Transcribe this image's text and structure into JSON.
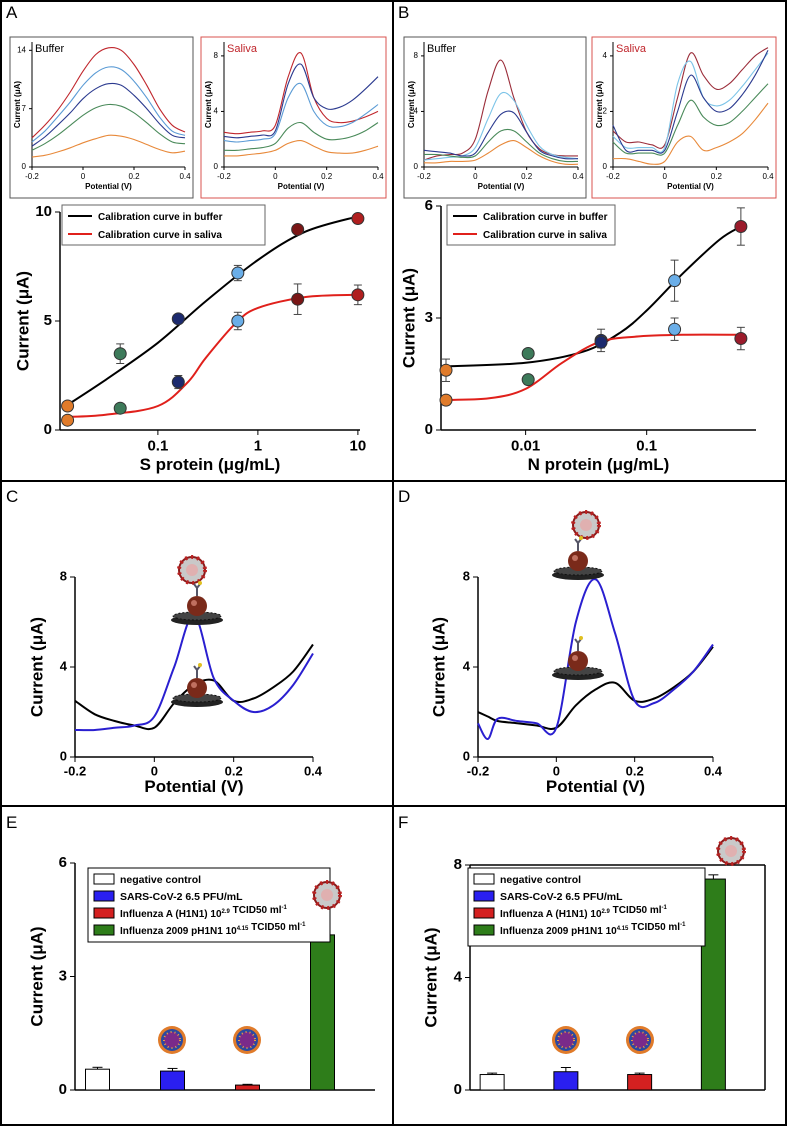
{
  "chart_data": [
    {
      "type": "line",
      "annotation": "Buffer",
      "annotation_color": "#000000",
      "frame_color": "#555555",
      "xlabel": "Potential (V)",
      "ylabel": "Current (μA)",
      "xlim": [
        -0.2,
        0.4
      ],
      "xticks": [
        -0.2,
        0,
        0.2,
        0.4
      ],
      "ylim": [
        0,
        15
      ],
      "yticks": [
        0,
        7,
        14
      ],
      "x": [
        -0.2,
        -0.15,
        -0.1,
        -0.05,
        0,
        0.05,
        0.1,
        0.15,
        0.2,
        0.25,
        0.3,
        0.35,
        0.4
      ],
      "series": [
        {
          "color": "#c0262c",
          "values": [
            3.5,
            5,
            6.8,
            9,
            11.5,
            13.5,
            14.3,
            14,
            12.3,
            9.8,
            7,
            5,
            4.2
          ]
        },
        {
          "color": "#5b9bd5",
          "values": [
            3,
            4.3,
            6,
            7.8,
            9.8,
            11.3,
            12,
            11.7,
            10.3,
            8.3,
            6,
            4.3,
            3.8
          ]
        },
        {
          "color": "#2b3a8f",
          "values": [
            2.5,
            3.6,
            5,
            6.5,
            8.2,
            9.4,
            10,
            9.8,
            8.6,
            7,
            5.2,
            3.8,
            3.5
          ]
        },
        {
          "color": "#4a8a5a",
          "values": [
            2,
            2.8,
            3.8,
            5,
            6.2,
            7.1,
            7.5,
            7.3,
            6.5,
            5.3,
            4,
            3,
            2.8
          ]
        },
        {
          "color": "#e8893a",
          "values": [
            1.2,
            1.4,
            1.8,
            2.3,
            2.9,
            3.4,
            3.8,
            3.7,
            3.3,
            2.7,
            2.1,
            1.7,
            1.9
          ]
        }
      ]
    },
    {
      "type": "line",
      "annotation": "Saliva",
      "annotation_color": "#c0262c",
      "frame_color": "#d9534f",
      "xlabel": "Potential (V)",
      "ylabel": "Current (μA)",
      "xlim": [
        -0.2,
        0.4
      ],
      "xticks": [
        -0.2,
        0,
        0.2,
        0.4
      ],
      "ylim": [
        0,
        9
      ],
      "yticks": [
        0,
        4,
        8
      ],
      "x": [
        -0.2,
        -0.15,
        -0.1,
        -0.05,
        0,
        0.05,
        0.1,
        0.15,
        0.2,
        0.25,
        0.3,
        0.35,
        0.4
      ],
      "series": [
        {
          "color": "#c0262c",
          "values": [
            2.5,
            2.4,
            2.5,
            2.6,
            3,
            6.5,
            8.2,
            5,
            3.5,
            3.2,
            3.3,
            3.6,
            4
          ]
        },
        {
          "color": "#5b9bd5",
          "values": [
            1.9,
            1.8,
            1.9,
            2,
            2.4,
            5,
            6,
            4,
            3,
            2.9,
            3.2,
            3.8,
            4.5
          ]
        },
        {
          "color": "#2b3a8f",
          "values": [
            2.2,
            2.1,
            2.2,
            2.3,
            2.6,
            6,
            7.4,
            5,
            4.2,
            4.3,
            4.8,
            5.6,
            6.5
          ]
        },
        {
          "color": "#4a8a5a",
          "values": [
            1.2,
            1.2,
            1.3,
            1.4,
            1.7,
            2.8,
            3.2,
            2.5,
            2,
            2,
            2.2,
            2.6,
            3.2
          ]
        },
        {
          "color": "#e8893a",
          "values": [
            0.8,
            0.8,
            0.9,
            1,
            1.2,
            1.7,
            1.9,
            1.5,
            1.1,
            1,
            1,
            1.2,
            1.5
          ]
        }
      ]
    },
    {
      "type": "scatter",
      "panel": "A",
      "xlabel": "S protein (μg/mL)",
      "ylabel": "Current (μA)",
      "log_x": true,
      "xlim": [
        0.0105,
        10.5
      ],
      "xticks": [
        0.1,
        1,
        10
      ],
      "ylim": [
        0,
        10
      ],
      "yticks": [
        0,
        5,
        10
      ],
      "legend": "upper left",
      "x": [
        0.0125,
        0.042,
        0.16,
        0.63,
        2.5,
        10
      ],
      "point_colors": [
        "#e07b2a",
        "#3d7a5a",
        "#1c2a6e",
        "#6aaee8",
        "#7a1616",
        "#b01e1e"
      ],
      "series": [
        {
          "name": "Calibration curve in buffer",
          "color": "#000000",
          "values": [
            1.1,
            3.5,
            5.1,
            7.2,
            9.2,
            9.7
          ],
          "errors": [
            0.1,
            0.45,
            0.1,
            0.35,
            0.1,
            0.1
          ]
        },
        {
          "name": "Calibration curve in saliva",
          "color": "#e0201b",
          "values": [
            0.45,
            1.0,
            2.2,
            5.0,
            6.0,
            6.2
          ],
          "errors": [
            0.1,
            0.1,
            0.3,
            0.4,
            0.7,
            0.45
          ]
        }
      ],
      "fit": [
        {
          "x": [
            0.012,
            0.03,
            0.1,
            0.3,
            1,
            3,
            10
          ],
          "values": [
            1.1,
            2.3,
            4.0,
            5.9,
            7.8,
            9.1,
            9.8
          ]
        },
        {
          "x": [
            0.012,
            0.03,
            0.1,
            0.2,
            0.3,
            0.6,
            1,
            3,
            10
          ],
          "values": [
            0.6,
            0.7,
            1.1,
            2.2,
            3.3,
            4.9,
            5.6,
            6.1,
            6.2
          ]
        }
      ]
    },
    {
      "type": "line",
      "annotation": "Buffer",
      "annotation_color": "#000000",
      "frame_color": "#555555",
      "xlabel": "Potential (V)",
      "ylabel": "Current (μA)",
      "xlim": [
        -0.2,
        0.4
      ],
      "xticks": [
        -0.2,
        0,
        0.2,
        0.4
      ],
      "ylim": [
        0,
        9
      ],
      "yticks": [
        0,
        4,
        8
      ],
      "x": [
        -0.2,
        -0.15,
        -0.1,
        -0.05,
        0,
        0.05,
        0.1,
        0.15,
        0.2,
        0.25,
        0.3,
        0.35,
        0.4
      ],
      "series": [
        {
          "color": "#9b2d3a",
          "values": [
            0.5,
            0.8,
            0.9,
            1,
            2,
            5.5,
            7.7,
            5,
            2.5,
            1.3,
            0.9,
            0.8,
            0.8
          ]
        },
        {
          "color": "#7cc4e8",
          "values": [
            0.5,
            0.6,
            0.7,
            0.8,
            1.4,
            3.5,
            5.3,
            4.8,
            3,
            1.5,
            0.9,
            0.7,
            0.6
          ]
        },
        {
          "color": "#2b3a8f",
          "values": [
            1.2,
            1.1,
            1,
            0.8,
            1,
            2.5,
            3.8,
            3.9,
            2.5,
            1.2,
            0.8,
            0.6,
            0.6
          ]
        },
        {
          "color": "#4a8a5a",
          "values": [
            0.9,
            0.9,
            0.8,
            0.7,
            0.8,
            1.8,
            2.6,
            2.6,
            1.8,
            1,
            0.6,
            0.4,
            0.4
          ]
        },
        {
          "color": "#e8893a",
          "values": [
            0.3,
            0.3,
            0.4,
            0.4,
            0.5,
            1,
            1.6,
            1.9,
            1.4,
            0.8,
            0.4,
            0.2,
            0.2
          ]
        }
      ]
    },
    {
      "type": "line",
      "annotation": "Saliva",
      "annotation_color": "#c0262c",
      "frame_color": "#d9534f",
      "xlabel": "Potential (V)",
      "ylabel": "Current (μA)",
      "xlim": [
        -0.2,
        0.4
      ],
      "xticks": [
        -0.2,
        0,
        0.2,
        0.4
      ],
      "ylim": [
        0,
        4.5
      ],
      "yticks": [
        0,
        2,
        4
      ],
      "x": [
        -0.2,
        -0.15,
        -0.1,
        -0.05,
        0,
        0.05,
        0.1,
        0.15,
        0.2,
        0.25,
        0.3,
        0.35,
        0.4
      ],
      "series": [
        {
          "color": "#9b2d3a",
          "values": [
            1.3,
            0.9,
            0.9,
            0.8,
            0.8,
            2.5,
            4.1,
            3.3,
            2.8,
            3,
            3.5,
            4,
            4.3
          ]
        },
        {
          "color": "#7cc4e8",
          "values": [
            1.1,
            0.7,
            0.7,
            0.7,
            0.7,
            3,
            3.8,
            2.5,
            2.2,
            2.4,
            2.9,
            3.5,
            4.1
          ]
        },
        {
          "color": "#2b3a8f",
          "values": [
            1.5,
            0.6,
            0.6,
            0.6,
            0.6,
            2,
            3.3,
            2.5,
            2,
            2.1,
            2.6,
            3.3,
            4.2
          ]
        },
        {
          "color": "#4a8a5a",
          "values": [
            0.9,
            0.5,
            0.5,
            0.5,
            0.5,
            1.5,
            2.4,
            1.8,
            1.5,
            1.6,
            2,
            2.5,
            3
          ]
        },
        {
          "color": "#e8893a",
          "values": [
            0.3,
            0.3,
            0.2,
            0.1,
            0.2,
            0.9,
            1.1,
            0.6,
            0.7,
            0.9,
            1.2,
            1.7,
            2.3
          ]
        }
      ]
    },
    {
      "type": "scatter",
      "panel": "B",
      "xlabel": "N protein (μg/mL)",
      "ylabel": "Current (μA)",
      "log_x": true,
      "xlim": [
        0.002,
        0.8
      ],
      "xticks": [
        0.01,
        0.1
      ],
      "ylim": [
        0,
        6
      ],
      "yticks": [
        0,
        3,
        6
      ],
      "legend": "upper left",
      "x": [
        0.0022,
        0.0105,
        0.042,
        0.17,
        0.6
      ],
      "point_colors": [
        "#e07b2a",
        "#3d7a5a",
        "#1c2a6e",
        "#6aaee8",
        "#9b1b2b"
      ],
      "series": [
        {
          "name": "Calibration curve in buffer",
          "color": "#000000",
          "values": [
            1.6,
            2.05,
            2.4,
            4.0,
            5.45
          ],
          "errors": [
            0.3,
            0.05,
            0.3,
            0.55,
            0.5
          ]
        },
        {
          "name": "Calibration curve in saliva",
          "color": "#e0201b",
          "values": [
            0.8,
            1.35,
            2.35,
            2.7,
            2.45
          ],
          "errors": [
            0.1,
            0.05,
            0.15,
            0.3,
            0.3
          ]
        }
      ],
      "fit": [
        {
          "x": [
            0.002,
            0.01,
            0.03,
            0.06,
            0.1,
            0.2,
            0.4,
            0.6
          ],
          "values": [
            1.7,
            1.8,
            2.1,
            2.6,
            3.2,
            4.2,
            5.1,
            5.45
          ]
        },
        {
          "x": [
            0.002,
            0.005,
            0.01,
            0.02,
            0.04,
            0.08,
            0.2,
            0.6
          ],
          "values": [
            0.8,
            0.85,
            1.1,
            1.8,
            2.35,
            2.5,
            2.55,
            2.55
          ]
        }
      ]
    },
    {
      "type": "line",
      "panel": "C",
      "xlabel": "Potential (V)",
      "ylabel": "Current (μA)",
      "xlim": [
        -0.2,
        0.4
      ],
      "xticks": [
        -0.2,
        0,
        0.2,
        0.4
      ],
      "ylim": [
        0,
        8
      ],
      "yticks": [
        0,
        4,
        8
      ],
      "x": [
        -0.2,
        -0.15,
        -0.1,
        -0.05,
        0,
        0.05,
        0.1,
        0.15,
        0.2,
        0.25,
        0.3,
        0.35,
        0.4
      ],
      "series": [
        {
          "color": "#000000",
          "values": [
            2.5,
            1.9,
            1.6,
            1.4,
            1.3,
            2.4,
            3.2,
            3.4,
            2.5,
            2.6,
            3.1,
            3.8,
            5
          ]
        },
        {
          "color": "#2a1fd0",
          "values": [
            1.2,
            1.2,
            1.3,
            1.4,
            1.8,
            4,
            6.3,
            3.5,
            2.5,
            2,
            2.3,
            3.2,
            4.6
          ]
        }
      ]
    },
    {
      "type": "line",
      "panel": "D",
      "xlabel": "Potential (V)",
      "ylabel": "Current (μA)",
      "xlim": [
        -0.2,
        0.4
      ],
      "xticks": [
        -0.2,
        0,
        0.2,
        0.4
      ],
      "ylim": [
        0,
        8
      ],
      "yticks": [
        0,
        4,
        8
      ],
      "x": [
        -0.2,
        -0.175,
        -0.15,
        -0.1,
        -0.05,
        0,
        0.05,
        0.1,
        0.15,
        0.2,
        0.25,
        0.3,
        0.35,
        0.4
      ],
      "series": [
        {
          "color": "#000000",
          "values": [
            2,
            1.8,
            1.6,
            1.5,
            1.4,
            1.3,
            2.3,
            3,
            3.3,
            2.5,
            2.6,
            3.1,
            3.8,
            4.9
          ]
        },
        {
          "color": "#2a1fd0",
          "values": [
            1.5,
            0.8,
            1.7,
            1.6,
            1.5,
            1.3,
            6,
            7.9,
            5.5,
            2.5,
            2.4,
            3,
            3.8,
            5
          ]
        }
      ]
    },
    {
      "type": "bar",
      "panel": "E",
      "ylabel": "Current (μA)",
      "ylim": [
        0,
        6
      ],
      "yticks": [
        0,
        3,
        6
      ],
      "legend": "upper left",
      "series": [
        {
          "name": "negative control",
          "color": "#ffffff",
          "values": [
            0.55
          ],
          "errors": [
            0.05
          ]
        },
        {
          "name": "SARS-CoV-2 6.5 PFU/mL",
          "color": "#2a1ff0",
          "values": [
            0.5
          ],
          "errors": [
            0.07
          ]
        },
        {
          "name": [
            "Influenza A (H1N1) 10",
            {
              "sup": "2.9"
            },
            " TCID50 ml",
            {
              "sup": "-1"
            }
          ],
          "color": "#d42020",
          "values": [
            0.13
          ],
          "errors": [
            0.02
          ]
        },
        {
          "name": [
            "Influenza 2009 pH1N1  10",
            {
              "sup": "4.15"
            },
            " TCID50 ml",
            {
              "sup": "-1"
            }
          ],
          "color": "#2e7d1a",
          "values": [
            4.1
          ],
          "errors": [
            0.45
          ]
        }
      ]
    },
    {
      "type": "bar",
      "panel": "F",
      "ylabel": "Current (μA)",
      "ylim": [
        0,
        8
      ],
      "yticks": [
        0,
        4,
        8
      ],
      "legend": "upper left",
      "series": [
        {
          "name": "negative control",
          "color": "#ffffff",
          "values": [
            0.55
          ],
          "errors": [
            0.05
          ]
        },
        {
          "name": "SARS-CoV-2 6.5 PFU/mL",
          "color": "#2a1ff0",
          "values": [
            0.65
          ],
          "errors": [
            0.15
          ]
        },
        {
          "name": [
            "Influenza A (H1N1) 10",
            {
              "sup": "2.9"
            },
            " TCID50 ml",
            {
              "sup": "-1"
            }
          ],
          "color": "#d42020",
          "values": [
            0.55
          ],
          "errors": [
            0.05
          ]
        },
        {
          "name": [
            "Influenza 2009 pH1N1  10",
            {
              "sup": "4.15"
            },
            " TCID50 ml",
            {
              "sup": "-1"
            }
          ],
          "color": "#2e7d1a",
          "values": [
            7.5
          ],
          "errors": [
            0.15
          ]
        }
      ]
    }
  ]
}
